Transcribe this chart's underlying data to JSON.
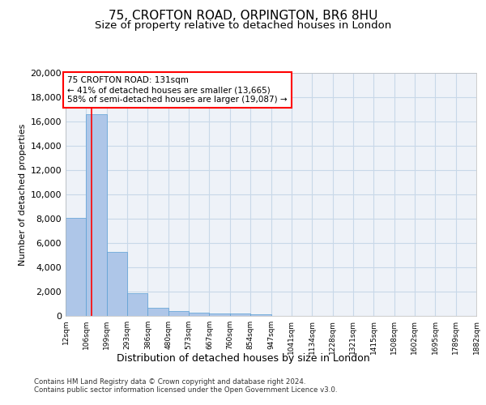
{
  "title_line1": "75, CROFTON ROAD, ORPINGTON, BR6 8HU",
  "title_line2": "Size of property relative to detached houses in London",
  "xlabel": "Distribution of detached houses by size in London",
  "ylabel": "Number of detached properties",
  "footnote1": "Contains HM Land Registry data © Crown copyright and database right 2024.",
  "footnote2": "Contains public sector information licensed under the Open Government Licence v3.0.",
  "bin_labels": [
    "12sqm",
    "106sqm",
    "199sqm",
    "293sqm",
    "386sqm",
    "480sqm",
    "573sqm",
    "667sqm",
    "760sqm",
    "854sqm",
    "947sqm",
    "1041sqm",
    "1134sqm",
    "1228sqm",
    "1321sqm",
    "1415sqm",
    "1508sqm",
    "1602sqm",
    "1695sqm",
    "1789sqm",
    "1882sqm"
  ],
  "bar_values": [
    8100,
    16600,
    5300,
    1850,
    700,
    370,
    280,
    230,
    190,
    160,
    0,
    0,
    0,
    0,
    0,
    0,
    0,
    0,
    0,
    0
  ],
  "bar_color": "#aec6e8",
  "bar_edge_color": "#5a9fd4",
  "grid_color": "#c8d8e8",
  "red_line_x": 1.27,
  "annotation_text_line1": "75 CROFTON ROAD: 131sqm",
  "annotation_text_line2": "← 41% of detached houses are smaller (13,665)",
  "annotation_text_line3": "58% of semi-detached houses are larger (19,087) →",
  "ylim": [
    0,
    20000
  ],
  "yticks": [
    0,
    2000,
    4000,
    6000,
    8000,
    10000,
    12000,
    14000,
    16000,
    18000,
    20000
  ],
  "bg_color": "#eef2f8",
  "title_fontsize": 11,
  "subtitle_fontsize": 9.5,
  "ylabel_fontsize": 8,
  "xlabel_fontsize": 9
}
